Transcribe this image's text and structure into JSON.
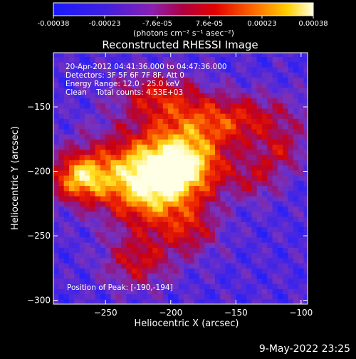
{
  "colorbar": {
    "ticks": [
      "-0.00038",
      "-0.00023",
      "-7.6e-05",
      "7.6e-05",
      "0.00023",
      "0.00038"
    ],
    "unit_label": "(photons cm⁻² s⁻¹ asec⁻²)",
    "range": [
      -0.00038,
      0.00038
    ]
  },
  "chart_data": {
    "type": "heatmap",
    "title": "Reconstructed RHESSI Image",
    "xlabel": "Heliocentric X (arcsec)",
    "ylabel": "Heliocentric Y (arcsec)",
    "xlim": [
      -290,
      -95
    ],
    "ylim": [
      -303,
      -108
    ],
    "x_ticks": [
      -250,
      -200,
      -150,
      -100
    ],
    "y_ticks": [
      -300,
      -250,
      -200,
      -150
    ],
    "peak": [
      -190,
      -194
    ],
    "annotation_lines": [
      "20-Apr-2012 04:41:36.000 to 04:47:36.000",
      "Detectors: 3F 5F 6F 7F 8F, Att 0",
      "Energy Range: 12.0 - 25.0 keV",
      "Clean    Total counts: 4.53E+03"
    ],
    "peak_label": "Position of Peak: [-190,-194]",
    "colormap": "RHESSI blue-purple-red-yellow-white",
    "colors": {
      "background": "#000000",
      "text": "#ffffff",
      "low": "#2020ff",
      "mid": "#a000a0",
      "high": "#ffffff"
    }
  },
  "footer": {
    "timestamp": "9-May-2022 23:25"
  }
}
